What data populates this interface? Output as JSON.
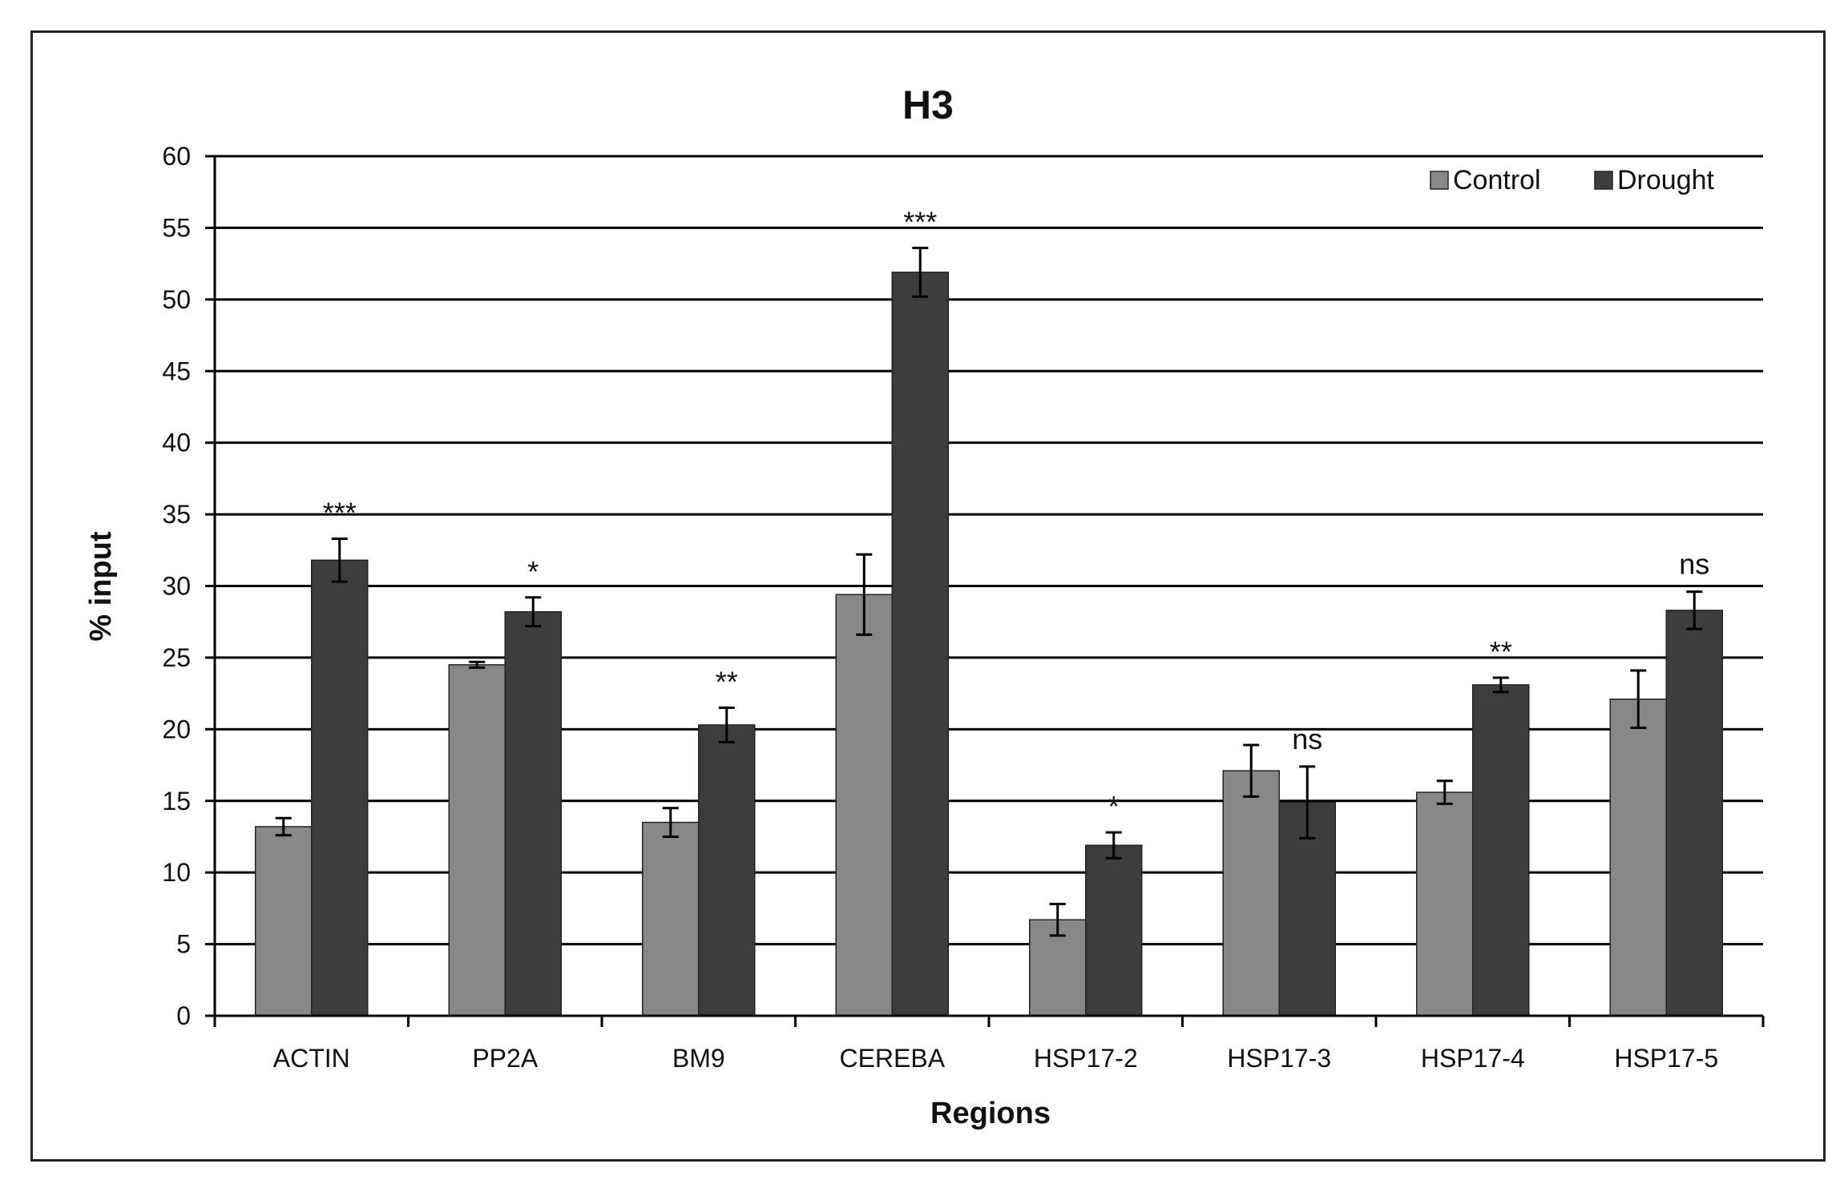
{
  "chart_data": {
    "type": "bar",
    "title": "H3",
    "xlabel": "Regions",
    "ylabel": "% input",
    "ylim": [
      0,
      60
    ],
    "yticks": [
      0,
      5,
      10,
      15,
      20,
      25,
      30,
      35,
      40,
      45,
      50,
      55,
      60
    ],
    "grid": "horizontal",
    "legend_position": "top-right",
    "categories": [
      "ACTIN",
      "PP2A",
      "BM9",
      "CEREBA",
      "HSP17-2",
      "HSP17-3",
      "HSP17-4",
      "HSP17-5"
    ],
    "series": [
      {
        "name": "Control",
        "color": "#888888",
        "values": [
          13.2,
          24.5,
          13.5,
          29.4,
          6.7,
          17.1,
          15.6,
          22.1
        ],
        "errors": [
          0.6,
          0.2,
          1.0,
          2.8,
          1.1,
          1.8,
          0.8,
          2.0
        ]
      },
      {
        "name": "Drought",
        "color": "#3d3d3d",
        "values": [
          31.8,
          28.2,
          20.3,
          51.9,
          11.9,
          14.9,
          23.1,
          28.3
        ],
        "errors": [
          1.5,
          1.0,
          1.2,
          1.7,
          0.9,
          2.5,
          0.5,
          1.3
        ]
      }
    ],
    "annotations": [
      "***",
      "*",
      "**",
      "***",
      "*",
      "ns",
      "**",
      "ns"
    ]
  }
}
